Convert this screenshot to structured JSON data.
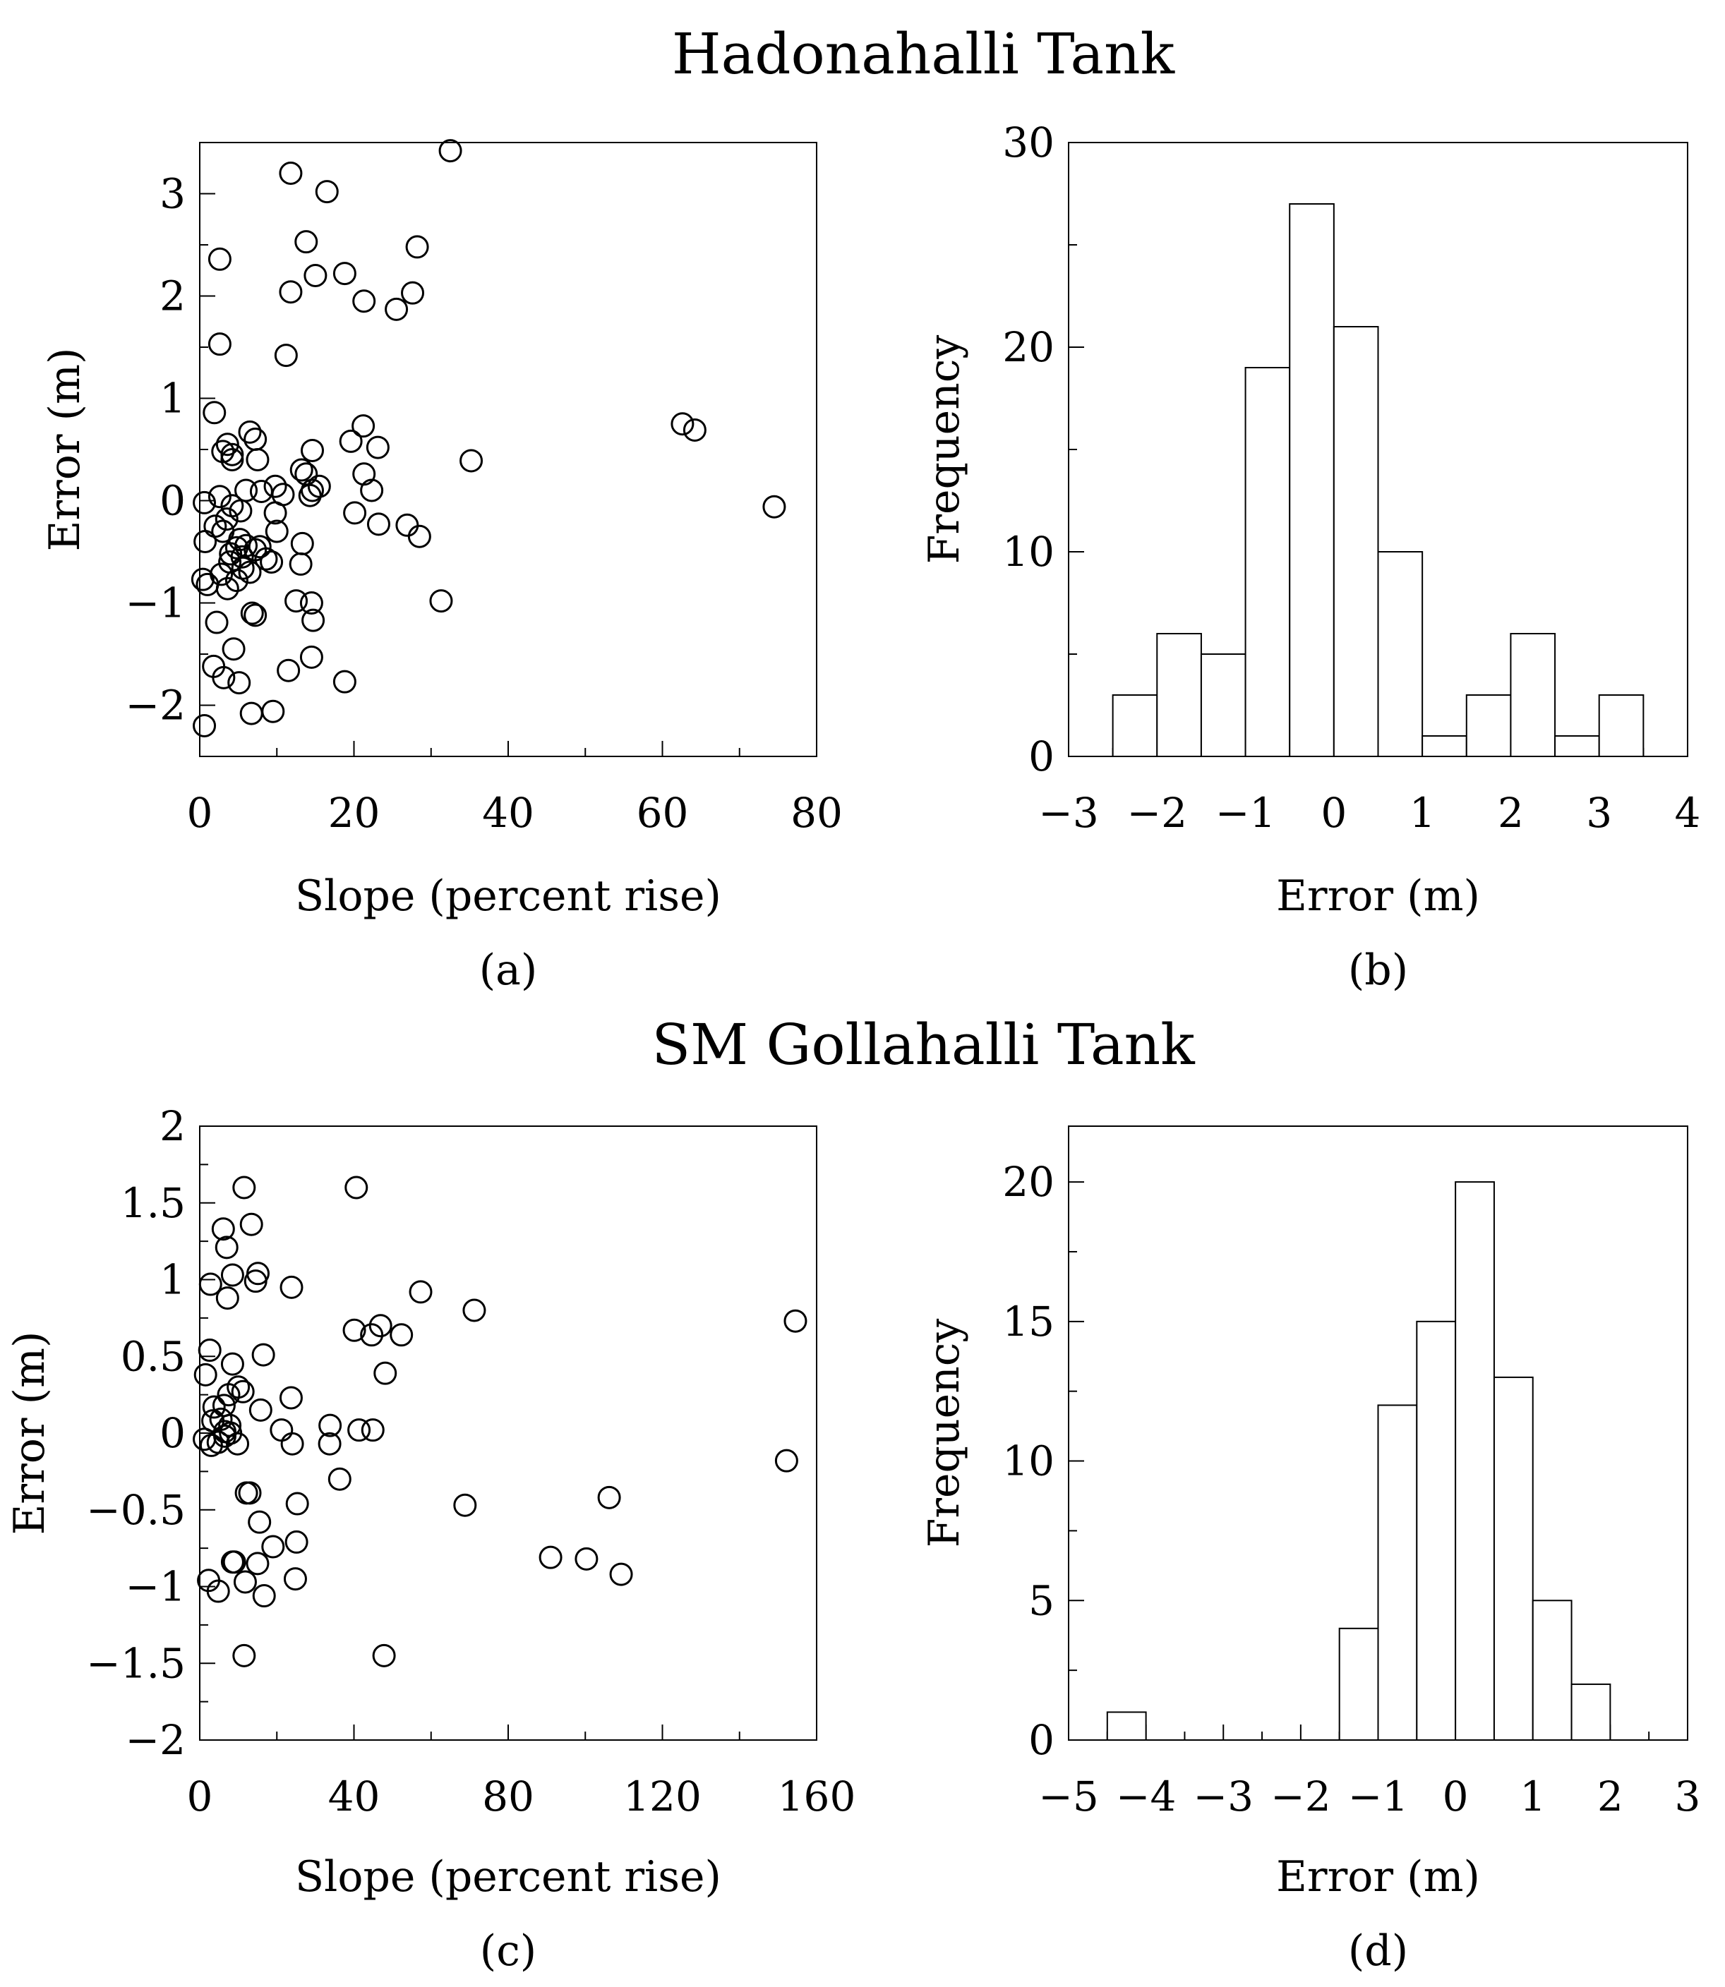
{
  "titles": {
    "top": "Hadonahalli Tank",
    "bottom": "SM Gollahalli Tank"
  },
  "chart_data": [
    {
      "panel": "(a)",
      "type": "scatter",
      "xlabel": "Slope (percent rise)",
      "ylabel": "Error (m)",
      "xlim": [
        0,
        80
      ],
      "ylim": [
        -2.5,
        3.5
      ],
      "xticks": [
        0,
        20,
        40,
        60,
        80
      ],
      "yticks": [
        -2,
        -1,
        0,
        1,
        2,
        3
      ],
      "grid": false,
      "points": [
        [
          32.5,
          3.42
        ],
        [
          11.8,
          3.2
        ],
        [
          16.5,
          3.02
        ],
        [
          13.8,
          2.53
        ],
        [
          28.2,
          2.48
        ],
        [
          2.6,
          2.36
        ],
        [
          15.0,
          2.2
        ],
        [
          18.8,
          2.22
        ],
        [
          11.8,
          2.04
        ],
        [
          27.6,
          2.03
        ],
        [
          21.3,
          1.95
        ],
        [
          25.5,
          1.87
        ],
        [
          2.6,
          1.53
        ],
        [
          11.2,
          1.42
        ],
        [
          1.9,
          0.86
        ],
        [
          62.6,
          0.75
        ],
        [
          64.2,
          0.69
        ],
        [
          6.5,
          0.67
        ],
        [
          21.2,
          0.73
        ],
        [
          7.2,
          0.6
        ],
        [
          19.6,
          0.58
        ],
        [
          3.6,
          0.55
        ],
        [
          23.1,
          0.52
        ],
        [
          14.6,
          0.49
        ],
        [
          3.0,
          0.48
        ],
        [
          4.2,
          0.45
        ],
        [
          4.2,
          0.4
        ],
        [
          7.5,
          0.4
        ],
        [
          35.2,
          0.39
        ],
        [
          13.2,
          0.3
        ],
        [
          13.8,
          0.26
        ],
        [
          21.3,
          0.26
        ],
        [
          9.8,
          0.14
        ],
        [
          15.5,
          0.14
        ],
        [
          14.6,
          0.1
        ],
        [
          22.3,
          0.1
        ],
        [
          14.3,
          0.05
        ],
        [
          8.0,
          0.09
        ],
        [
          10.8,
          0.06
        ],
        [
          6.0,
          0.1
        ],
        [
          2.6,
          0.04
        ],
        [
          0.6,
          -0.02
        ],
        [
          4.2,
          -0.05
        ],
        [
          74.5,
          -0.06
        ],
        [
          9.8,
          -0.12
        ],
        [
          5.3,
          -0.1
        ],
        [
          20.1,
          -0.12
        ],
        [
          3.5,
          -0.18
        ],
        [
          2.0,
          -0.25
        ],
        [
          23.2,
          -0.23
        ],
        [
          26.9,
          -0.24
        ],
        [
          3.0,
          -0.3
        ],
        [
          10.0,
          -0.3
        ],
        [
          28.5,
          -0.35
        ],
        [
          5.2,
          -0.38
        ],
        [
          0.7,
          -0.4
        ],
        [
          13.3,
          -0.42
        ],
        [
          6.0,
          -0.44
        ],
        [
          4.8,
          -0.46
        ],
        [
          7.8,
          -0.45
        ],
        [
          7.2,
          -0.48
        ],
        [
          4.0,
          -0.52
        ],
        [
          5.5,
          -0.55
        ],
        [
          8.6,
          -0.57
        ],
        [
          3.9,
          -0.6
        ],
        [
          9.3,
          -0.6
        ],
        [
          13.1,
          -0.62
        ],
        [
          5.6,
          -0.66
        ],
        [
          2.8,
          -0.72
        ],
        [
          6.5,
          -0.7
        ],
        [
          0.4,
          -0.77
        ],
        [
          4.8,
          -0.78
        ],
        [
          1.0,
          -0.82
        ],
        [
          3.6,
          -0.86
        ],
        [
          31.3,
          -0.98
        ],
        [
          12.5,
          -0.98
        ],
        [
          14.5,
          -1.0
        ],
        [
          6.8,
          -1.1
        ],
        [
          7.2,
          -1.12
        ],
        [
          14.7,
          -1.17
        ],
        [
          2.2,
          -1.19
        ],
        [
          4.4,
          -1.45
        ],
        [
          14.5,
          -1.53
        ],
        [
          1.8,
          -1.62
        ],
        [
          11.5,
          -1.66
        ],
        [
          3.1,
          -1.73
        ],
        [
          5.1,
          -1.78
        ],
        [
          18.8,
          -1.77
        ],
        [
          6.7,
          -2.08
        ],
        [
          9.5,
          -2.06
        ],
        [
          0.6,
          -2.2
        ]
      ]
    },
    {
      "panel": "(b)",
      "type": "bar",
      "xlabel": "Error (m)",
      "ylabel": "Frequency",
      "xlim": [
        -3,
        4
      ],
      "ylim": [
        0,
        30
      ],
      "xticks": [
        -3,
        -2,
        -1,
        0,
        1,
        2,
        3,
        4
      ],
      "yticks": [
        0,
        10,
        20,
        30
      ],
      "grid": false,
      "bin_width": 0.5,
      "bin_starts": [
        -2.5,
        -2.0,
        -1.5,
        -1.0,
        -0.5,
        0.0,
        0.5,
        1.0,
        1.5,
        2.0,
        2.5,
        3.0
      ],
      "values": [
        3,
        6,
        5,
        19,
        27,
        21,
        10,
        1,
        3,
        6,
        1,
        3
      ]
    },
    {
      "panel": "(c)",
      "type": "scatter",
      "xlabel": "Slope (percent rise)",
      "ylabel": "Error (m)",
      "xlim": [
        0,
        160
      ],
      "ylim": [
        -2,
        2
      ],
      "xticks": [
        0,
        40,
        80,
        120,
        160
      ],
      "yticks": [
        -2,
        -1.5,
        -1,
        -0.5,
        0,
        0.5,
        1,
        1.5,
        2
      ],
      "grid": false,
      "points": [
        [
          11.5,
          1.6
        ],
        [
          40.6,
          1.6
        ],
        [
          13.4,
          1.36
        ],
        [
          6.1,
          1.33
        ],
        [
          7.0,
          1.21
        ],
        [
          15.1,
          1.04
        ],
        [
          8.5,
          1.03
        ],
        [
          14.5,
          0.99
        ],
        [
          2.8,
          0.97
        ],
        [
          23.8,
          0.95
        ],
        [
          57.3,
          0.92
        ],
        [
          7.2,
          0.88
        ],
        [
          71.2,
          0.8
        ],
        [
          154.5,
          0.73
        ],
        [
          40.1,
          0.67
        ],
        [
          46.9,
          0.7
        ],
        [
          44.6,
          0.64
        ],
        [
          52.3,
          0.64
        ],
        [
          2.6,
          0.54
        ],
        [
          16.5,
          0.51
        ],
        [
          8.5,
          0.45
        ],
        [
          1.5,
          0.38
        ],
        [
          48.1,
          0.39
        ],
        [
          10.0,
          0.3
        ],
        [
          7.5,
          0.25
        ],
        [
          11.2,
          0.27
        ],
        [
          23.7,
          0.23
        ],
        [
          6.3,
          0.18
        ],
        [
          3.7,
          0.17
        ],
        [
          15.8,
          0.15
        ],
        [
          5.5,
          0.09
        ],
        [
          3.4,
          0.08
        ],
        [
          33.8,
          0.05
        ],
        [
          7.8,
          0.05
        ],
        [
          21.2,
          0.02
        ],
        [
          41.3,
          0.02
        ],
        [
          44.9,
          0.02
        ],
        [
          6.5,
          0.01
        ],
        [
          8.0,
          0.0
        ],
        [
          1.2,
          -0.04
        ],
        [
          6.5,
          -0.02
        ],
        [
          4.8,
          -0.06
        ],
        [
          3.0,
          -0.08
        ],
        [
          9.8,
          -0.07
        ],
        [
          24.0,
          -0.07
        ],
        [
          33.7,
          -0.07
        ],
        [
          152.2,
          -0.18
        ],
        [
          36.3,
          -0.3
        ],
        [
          12.1,
          -0.39
        ],
        [
          13.0,
          -0.39
        ],
        [
          106.2,
          -0.42
        ],
        [
          25.3,
          -0.46
        ],
        [
          68.8,
          -0.47
        ],
        [
          15.5,
          -0.58
        ],
        [
          25.1,
          -0.71
        ],
        [
          19.0,
          -0.74
        ],
        [
          91.0,
          -0.81
        ],
        [
          100.3,
          -0.82
        ],
        [
          8.5,
          -0.84
        ],
        [
          9.0,
          -0.84
        ],
        [
          15.0,
          -0.85
        ],
        [
          109.3,
          -0.92
        ],
        [
          24.8,
          -0.95
        ],
        [
          2.3,
          -0.96
        ],
        [
          11.8,
          -0.97
        ],
        [
          4.8,
          -1.03
        ],
        [
          16.7,
          -1.06
        ],
        [
          11.5,
          -1.45
        ],
        [
          47.8,
          -1.45
        ]
      ]
    },
    {
      "panel": "(d)",
      "type": "bar",
      "xlabel": "Error (m)",
      "ylabel": "Frequency",
      "xlim": [
        -5,
        3
      ],
      "ylim": [
        0,
        22
      ],
      "xticks": [
        -5,
        -4,
        -3,
        -2,
        -1,
        0,
        1,
        2,
        3
      ],
      "yticks": [
        0,
        5,
        10,
        15,
        20
      ],
      "grid": false,
      "bin_width": 0.5,
      "bin_starts": [
        -4.5,
        -4.0,
        -3.5,
        -3.0,
        -2.5,
        -2.0,
        -1.5,
        -1.0,
        -0.5,
        0.0,
        0.5,
        1.0,
        1.5,
        2.0
      ],
      "values": [
        1,
        0,
        0,
        0,
        0,
        0,
        4,
        12,
        15,
        20,
        13,
        5,
        2,
        0
      ]
    }
  ]
}
